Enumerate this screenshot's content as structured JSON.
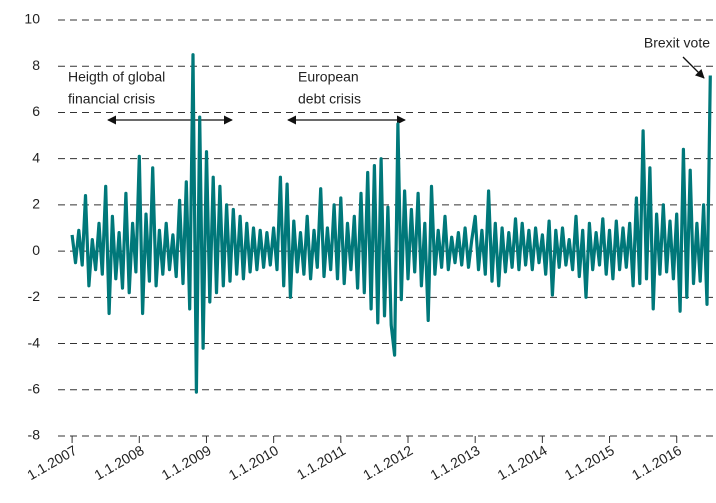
{
  "chart_data": {
    "type": "line",
    "annotations": [
      [
        "Heigth of global",
        "financial crisis"
      ],
      [
        "European",
        "debt crisis"
      ],
      [
        "Brexit vote"
      ]
    ],
    "x": [
      2007.0,
      2007.05,
      2007.1,
      2007.15,
      2007.2,
      2007.25,
      2007.3,
      2007.35,
      2007.4,
      2007.45,
      2007.5,
      2007.55,
      2007.6,
      2007.65,
      2007.7,
      2007.75,
      2007.8,
      2007.85,
      2007.9,
      2007.95,
      2008.0,
      2008.05,
      2008.1,
      2008.15,
      2008.2,
      2008.25,
      2008.3,
      2008.35,
      2008.4,
      2008.45,
      2008.5,
      2008.55,
      2008.6,
      2008.65,
      2008.7,
      2008.75,
      2008.8,
      2008.85,
      2008.9,
      2008.95,
      2009.0,
      2009.05,
      2009.1,
      2009.15,
      2009.2,
      2009.25,
      2009.3,
      2009.35,
      2009.4,
      2009.45,
      2009.5,
      2009.55,
      2009.6,
      2009.65,
      2009.7,
      2009.75,
      2009.8,
      2009.85,
      2009.9,
      2009.95,
      2010.0,
      2010.05,
      2010.1,
      2010.15,
      2010.2,
      2010.25,
      2010.3,
      2010.35,
      2010.4,
      2010.45,
      2010.5,
      2010.55,
      2010.6,
      2010.65,
      2010.7,
      2010.75,
      2010.8,
      2010.85,
      2010.9,
      2010.95,
      2011.0,
      2011.05,
      2011.1,
      2011.15,
      2011.2,
      2011.25,
      2011.3,
      2011.35,
      2011.4,
      2011.45,
      2011.5,
      2011.55,
      2011.6,
      2011.65,
      2011.7,
      2011.75,
      2011.8,
      2011.85,
      2011.9,
      2011.95,
      2012.0,
      2012.05,
      2012.1,
      2012.15,
      2012.2,
      2012.25,
      2012.3,
      2012.35,
      2012.4,
      2012.45,
      2012.5,
      2012.55,
      2012.6,
      2012.65,
      2012.7,
      2012.75,
      2012.8,
      2012.85,
      2012.9,
      2012.95,
      2013.0,
      2013.05,
      2013.1,
      2013.15,
      2013.2,
      2013.25,
      2013.3,
      2013.35,
      2013.4,
      2013.45,
      2013.5,
      2013.55,
      2013.6,
      2013.65,
      2013.7,
      2013.75,
      2013.8,
      2013.85,
      2013.9,
      2013.95,
      2014.0,
      2014.05,
      2014.1,
      2014.15,
      2014.2,
      2014.25,
      2014.3,
      2014.35,
      2014.4,
      2014.45,
      2014.5,
      2014.55,
      2014.6,
      2014.65,
      2014.7,
      2014.75,
      2014.8,
      2014.85,
      2014.9,
      2014.95,
      2015.0,
      2015.05,
      2015.1,
      2015.15,
      2015.2,
      2015.25,
      2015.3,
      2015.35,
      2015.4,
      2015.45,
      2015.5,
      2015.55,
      2015.6,
      2015.65,
      2015.7,
      2015.75,
      2015.8,
      2015.85,
      2015.9,
      2015.95,
      2016.0,
      2016.05,
      2016.1,
      2016.15,
      2016.2,
      2016.25,
      2016.3,
      2016.35,
      2016.4,
      2016.45,
      2016.5
    ],
    "series": [
      {
        "color": "#00787a",
        "values": [
          0.7,
          -0.5,
          0.9,
          -0.6,
          2.4,
          -1.5,
          0.5,
          -0.8,
          1.2,
          -1.0,
          2.8,
          -2.7,
          1.5,
          -1.2,
          0.8,
          -1.6,
          2.5,
          -1.8,
          1.2,
          -0.9,
          4.1,
          -2.7,
          1.6,
          -1.3,
          3.6,
          -1.5,
          0.9,
          -1.0,
          1.2,
          -0.8,
          0.7,
          -1.1,
          2.2,
          -1.4,
          3.0,
          -2.5,
          8.5,
          -6.1,
          5.8,
          -4.2,
          4.3,
          -2.2,
          3.2,
          -1.8,
          2.8,
          -1.5,
          2.0,
          -1.3,
          1.8,
          -1.0,
          1.5,
          -1.2,
          1.2,
          -0.9,
          1.0,
          -0.8,
          0.9,
          -0.7,
          0.8,
          -0.6,
          1.0,
          -0.8,
          3.2,
          -1.5,
          2.9,
          -2.0,
          1.3,
          -0.9,
          0.8,
          -1.0,
          1.5,
          -1.2,
          0.9,
          -0.7,
          2.7,
          -1.1,
          1.0,
          -0.8,
          2.0,
          -1.2,
          2.3,
          -1.4,
          1.2,
          -0.8,
          1.5,
          -1.6,
          2.5,
          -1.8,
          3.4,
          -2.5,
          3.7,
          -3.1,
          4.0,
          -2.8,
          1.9,
          -3.2,
          -4.5,
          5.5,
          -2.1,
          2.6,
          -1.2,
          1.8,
          -0.9,
          2.5,
          -1.5,
          1.2,
          -3.0,
          2.8,
          -1.0,
          0.9,
          -0.7,
          1.5,
          -0.8,
          0.6,
          -0.5,
          0.8,
          -0.6,
          1.0,
          -0.7,
          0.5,
          1.5,
          -0.8,
          0.9,
          -1.0,
          2.6,
          -1.3,
          1.2,
          -1.5,
          1.0,
          -0.9,
          0.8,
          -0.7,
          1.4,
          -0.8,
          1.2,
          -0.6,
          0.9,
          -0.8,
          1.0,
          -0.5,
          0.7,
          -1.0,
          1.3,
          -1.9,
          0.9,
          -0.7,
          1.0,
          -0.6,
          0.5,
          -0.8,
          1.5,
          -1.1,
          0.9,
          -2.0,
          1.2,
          -0.8,
          0.8,
          -0.6,
          1.4,
          -1.0,
          0.9,
          -1.2,
          1.3,
          -0.8,
          1.0,
          -0.7,
          1.2,
          -1.5,
          2.3,
          -1.4,
          5.2,
          -1.2,
          3.6,
          -2.5,
          1.6,
          -1.0,
          2.0,
          -0.9,
          1.3,
          -1.2,
          1.6,
          -2.6,
          4.4,
          -2.0,
          3.5,
          -1.4,
          1.2,
          -1.3,
          2.0,
          -2.3,
          7.6
        ]
      }
    ],
    "xlim": [
      2006.79,
      2016.54
    ],
    "xticks": [
      {
        "value": 2007,
        "label": "1.1.2007"
      },
      {
        "value": 2008,
        "label": "1.1.2008"
      },
      {
        "value": 2009,
        "label": "1.1.2009"
      },
      {
        "value": 2010,
        "label": "1.1.2010"
      },
      {
        "value": 2011,
        "label": "1.1.2011"
      },
      {
        "value": 2012,
        "label": "1.1.2012"
      },
      {
        "value": 2013,
        "label": "1.1.2013"
      },
      {
        "value": 2014,
        "label": "1.1.2014"
      },
      {
        "value": 2015,
        "label": "1.1.2015"
      },
      {
        "value": 2016,
        "label": "1.1.2016"
      }
    ],
    "ylim": [
      -8,
      10
    ],
    "yticks": [
      -8,
      -6,
      -4,
      -2,
      0,
      2,
      4,
      6,
      8,
      10
    ],
    "grid": true
  }
}
